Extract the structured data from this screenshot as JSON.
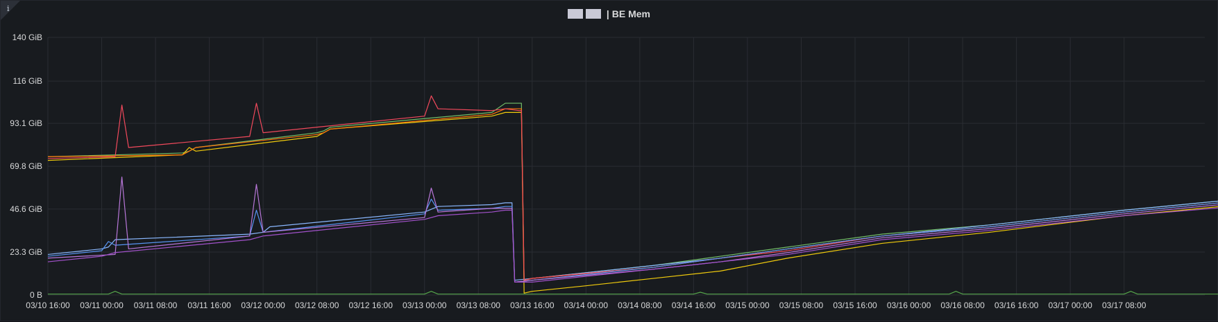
{
  "panel": {
    "title": "| BE Mem",
    "info_glyph": "i",
    "info_icon": "info-corner-icon",
    "redacted_blocks": 2
  },
  "chart_data": {
    "type": "line",
    "title": "| BE Mem",
    "xlabel": "",
    "ylabel": "",
    "yunit": "GiB",
    "ylim": [
      0,
      139.7
    ],
    "grid": true,
    "legend": "none",
    "ytick_values": [
      0,
      23.3,
      46.6,
      69.8,
      93.1,
      116,
      139.7
    ],
    "ytick_labels": [
      "0 B",
      "23.3 GiB",
      "46.6 GiB",
      "69.8 GiB",
      "93.1 GiB",
      "116 GiB",
      "140 GiB"
    ],
    "xlim": [
      "03/10 16:00",
      "03/17 20:00"
    ],
    "xtick_labels": [
      "03/10 16:00",
      "03/11 00:00",
      "03/11 08:00",
      "03/11 16:00",
      "03/12 00:00",
      "03/12 08:00",
      "03/12 16:00",
      "03/13 00:00",
      "03/13 08:00",
      "03/13 16:00",
      "03/14 00:00",
      "03/14 08:00",
      "03/14 16:00",
      "03/15 00:00",
      "03/15 08:00",
      "03/15 16:00",
      "03/16 00:00",
      "03/16 08:00",
      "03/16 16:00",
      "03/17 00:00",
      "03/17 08:00"
    ],
    "series": [
      {
        "color": "#73bf69",
        "points": [
          [
            0,
            75
          ],
          [
            10,
            77
          ],
          [
            10.5,
            78
          ],
          [
            11,
            80
          ],
          [
            20,
            88
          ],
          [
            20.5,
            89
          ],
          [
            21,
            91
          ],
          [
            33,
            99
          ],
          [
            34,
            104
          ],
          [
            35,
            104
          ],
          [
            35.2,
            104
          ],
          [
            35.4,
            8
          ],
          [
            36,
            9
          ],
          [
            45,
            16
          ],
          [
            50,
            21
          ],
          [
            55,
            26
          ],
          [
            62,
            33
          ],
          [
            70,
            38
          ],
          [
            80,
            46
          ],
          [
            90,
            53
          ],
          [
            97,
            59
          ]
        ]
      },
      {
        "color": "#f2cc0c",
        "points": [
          [
            0,
            73
          ],
          [
            10,
            76
          ],
          [
            10.5,
            80
          ],
          [
            11,
            78
          ],
          [
            20,
            86
          ],
          [
            20.5,
            88
          ],
          [
            21,
            90
          ],
          [
            33,
            97
          ],
          [
            34,
            99
          ],
          [
            35,
            99
          ],
          [
            35.2,
            99
          ],
          [
            35.4,
            1
          ],
          [
            36,
            2
          ],
          [
            40,
            5
          ],
          [
            45,
            9
          ],
          [
            50,
            13
          ],
          [
            55,
            20
          ],
          [
            62,
            28
          ],
          [
            70,
            34
          ],
          [
            80,
            43
          ],
          [
            90,
            50
          ],
          [
            97,
            56
          ]
        ]
      },
      {
        "color": "#8ab8ff",
        "points": [
          [
            0,
            22
          ],
          [
            4,
            25
          ],
          [
            4.5,
            26
          ],
          [
            5,
            30
          ],
          [
            15,
            33
          ],
          [
            16,
            34
          ],
          [
            16.5,
            37
          ],
          [
            28,
            45
          ],
          [
            29,
            48
          ],
          [
            33,
            49
          ],
          [
            34,
            50
          ],
          [
            34.5,
            50
          ],
          [
            34.7,
            8
          ],
          [
            36,
            9
          ],
          [
            45,
            16
          ],
          [
            50,
            20
          ],
          [
            55,
            25
          ],
          [
            62,
            32
          ],
          [
            70,
            38
          ],
          [
            80,
            46
          ],
          [
            90,
            53
          ],
          [
            97,
            57
          ]
        ]
      },
      {
        "color": "#ff780a",
        "points": [
          [
            0,
            75
          ],
          [
            10,
            76
          ],
          [
            10.5,
            78
          ],
          [
            11,
            80
          ],
          [
            20,
            87
          ],
          [
            20.5,
            88
          ],
          [
            21,
            90
          ],
          [
            33,
            98
          ],
          [
            34,
            101
          ],
          [
            35,
            101
          ],
          [
            35.2,
            101
          ],
          [
            35.4,
            8
          ],
          [
            36,
            9
          ],
          [
            45,
            15
          ],
          [
            50,
            20
          ],
          [
            55,
            25
          ],
          [
            62,
            32
          ],
          [
            70,
            37
          ],
          [
            80,
            45
          ],
          [
            90,
            52
          ],
          [
            97,
            57
          ]
        ]
      },
      {
        "color": "#f2495c",
        "points": [
          [
            0,
            74
          ],
          [
            5,
            75
          ],
          [
            5.5,
            103
          ],
          [
            6,
            80
          ],
          [
            15,
            86
          ],
          [
            15.5,
            104
          ],
          [
            16,
            88
          ],
          [
            28,
            97
          ],
          [
            28.5,
            108
          ],
          [
            29,
            101
          ],
          [
            33,
            100
          ],
          [
            34,
            101
          ],
          [
            35,
            100
          ],
          [
            35.2,
            100
          ],
          [
            35.4,
            8
          ],
          [
            36,
            9
          ],
          [
            45,
            15
          ],
          [
            50,
            20
          ],
          [
            55,
            24
          ],
          [
            62,
            32
          ],
          [
            70,
            37
          ],
          [
            80,
            45
          ],
          [
            90,
            52
          ],
          [
            97,
            57
          ]
        ]
      },
      {
        "color": "#5794f2",
        "points": [
          [
            0,
            21
          ],
          [
            4,
            24
          ],
          [
            4.5,
            29
          ],
          [
            5,
            27
          ],
          [
            15,
            32
          ],
          [
            15.5,
            46
          ],
          [
            16,
            34
          ],
          [
            28,
            44
          ],
          [
            28.5,
            52
          ],
          [
            29,
            46
          ],
          [
            33,
            47
          ],
          [
            34,
            48
          ],
          [
            34.5,
            48
          ],
          [
            34.7,
            7
          ],
          [
            36,
            8
          ],
          [
            45,
            15
          ],
          [
            50,
            20
          ],
          [
            55,
            25
          ],
          [
            62,
            32
          ],
          [
            70,
            37
          ],
          [
            80,
            45
          ],
          [
            90,
            52
          ],
          [
            97,
            57
          ]
        ]
      },
      {
        "color": "#b877d9",
        "points": [
          [
            0,
            20
          ],
          [
            5,
            22
          ],
          [
            5.5,
            64
          ],
          [
            6,
            25
          ],
          [
            15,
            32
          ],
          [
            15.5,
            60
          ],
          [
            16,
            34
          ],
          [
            28,
            42
          ],
          [
            28.5,
            58
          ],
          [
            29,
            45
          ],
          [
            33,
            47
          ],
          [
            34,
            47
          ],
          [
            34.5,
            47
          ],
          [
            34.7,
            7
          ],
          [
            36,
            8
          ],
          [
            45,
            14
          ],
          [
            50,
            18
          ],
          [
            55,
            23
          ],
          [
            62,
            31
          ],
          [
            70,
            36
          ],
          [
            80,
            44
          ],
          [
            90,
            51
          ],
          [
            97,
            56
          ]
        ]
      },
      {
        "color": "#a352cc",
        "points": [
          [
            0,
            18
          ],
          [
            4,
            21
          ],
          [
            5,
            23
          ],
          [
            15,
            30
          ],
          [
            16,
            32
          ],
          [
            28,
            41
          ],
          [
            29,
            43
          ],
          [
            33,
            45
          ],
          [
            34,
            46
          ],
          [
            34.5,
            46
          ],
          [
            34.7,
            7
          ],
          [
            36,
            7
          ],
          [
            45,
            14
          ],
          [
            50,
            18
          ],
          [
            55,
            22
          ],
          [
            62,
            30
          ],
          [
            70,
            35
          ],
          [
            80,
            43
          ],
          [
            90,
            49
          ],
          [
            97,
            53
          ]
        ]
      },
      {
        "color": "#56a64b",
        "points": [
          [
            0,
            0.5
          ],
          [
            4.5,
            0.5
          ],
          [
            5,
            2
          ],
          [
            5.5,
            0.5
          ],
          [
            28,
            0.5
          ],
          [
            28.5,
            2
          ],
          [
            29,
            0.5
          ],
          [
            48,
            0.5
          ],
          [
            48.5,
            1.5
          ],
          [
            49,
            0.5
          ],
          [
            67,
            0.5
          ],
          [
            67.5,
            2
          ],
          [
            68,
            0.5
          ],
          [
            80,
            0.5
          ],
          [
            80.5,
            2
          ],
          [
            81,
            0.5
          ],
          [
            97,
            0.5
          ]
        ]
      }
    ]
  }
}
